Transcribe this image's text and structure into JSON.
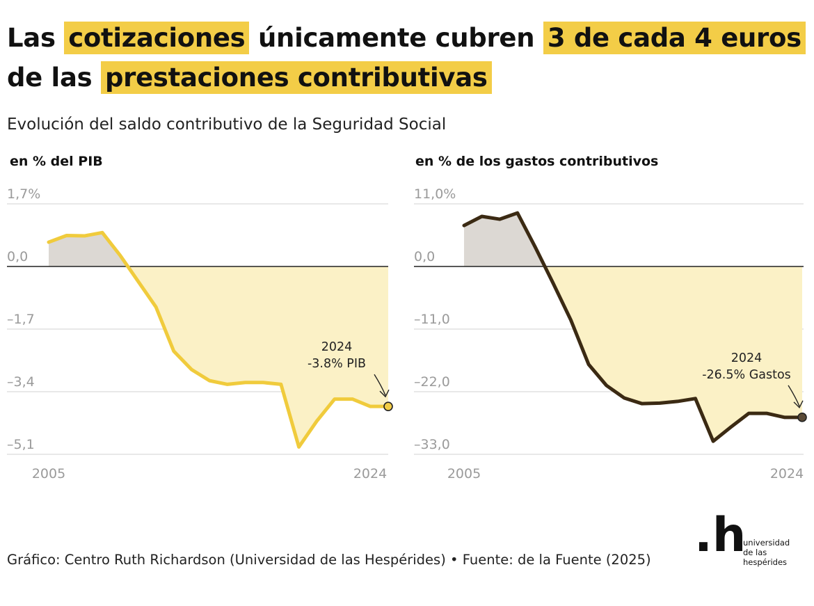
{
  "headline": {
    "parts": [
      {
        "text": "Las",
        "highlight": false
      },
      {
        "text": "cotizaciones",
        "highlight": true
      },
      {
        "text": "únicamente cubren",
        "highlight": false
      },
      {
        "text": "3 de cada 4 euros",
        "highlight": true
      },
      {
        "text": "de las",
        "highlight": false
      },
      {
        "text": "prestaciones contributivas",
        "highlight": true
      }
    ]
  },
  "subtitle": "Evolución del saldo contributivo de la Seguridad Social",
  "colors": {
    "highlight": "#f3cd47",
    "left_line": "#f0cb3c",
    "right_line": "#3b2a13",
    "negative_fill": "#fbf1c6",
    "positive_fill": "#dcd8d3",
    "axis_text": "#9a9a9a",
    "gridline": "#d9d9d9"
  },
  "chart_data": [
    {
      "type": "area",
      "title": "en % del PIB",
      "x": [
        2005,
        2006,
        2007,
        2008,
        2009,
        2010,
        2011,
        2012,
        2013,
        2014,
        2015,
        2016,
        2017,
        2018,
        2019,
        2020,
        2021,
        2022,
        2023,
        2024
      ],
      "values": [
        0.66,
        0.84,
        0.83,
        0.92,
        0.3,
        -0.4,
        -1.1,
        -2.3,
        -2.8,
        -3.1,
        -3.2,
        -3.15,
        -3.15,
        -3.2,
        -4.9,
        -4.2,
        -3.6,
        -3.6,
        -3.8,
        -3.8
      ],
      "y_ticks": [
        "1,7%",
        "0,0",
        "–1,7",
        "–3,4",
        "–5,1"
      ],
      "y_tick_values": [
        1.7,
        0,
        -1.7,
        -3.4,
        -5.1
      ],
      "ylim": [
        -5.1,
        1.7
      ],
      "x_tick_labels": [
        "2005",
        "2024"
      ],
      "annotation": {
        "year": "2024",
        "label": "-3.8% PIB"
      },
      "grid": true
    },
    {
      "type": "area",
      "title": "en % de los gastos contributivos",
      "x": [
        2005,
        2006,
        2007,
        2008,
        2009,
        2010,
        2011,
        2012,
        2013,
        2014,
        2015,
        2016,
        2017,
        2018,
        2019,
        2020,
        2021,
        2022,
        2023,
        2024
      ],
      "values": [
        7.2,
        8.8,
        8.3,
        9.4,
        3.4,
        -2.9,
        -9.4,
        -17.2,
        -20.9,
        -23.1,
        -24.1,
        -24.0,
        -23.7,
        -23.2,
        -30.7,
        -28.2,
        -25.8,
        -25.8,
        -26.5,
        -26.5
      ],
      "y_ticks": [
        "11,0%",
        "0,0",
        "–11,0",
        "–22,0",
        "–33,0"
      ],
      "y_tick_values": [
        11,
        0,
        -11,
        -22,
        -33
      ],
      "ylim": [
        -33,
        11
      ],
      "x_tick_labels": [
        "2005",
        "2024"
      ],
      "annotation": {
        "year": "2024",
        "label": "-26.5% Gastos"
      },
      "grid": true
    }
  ],
  "source": "Gráfico: Centro Ruth Richardson (Universidad de las Hespérides) • Fuente: de la Fuente (2025)",
  "logo": {
    "mark": ".h",
    "lines": [
      "universidad",
      "de las",
      "hespérides"
    ]
  }
}
